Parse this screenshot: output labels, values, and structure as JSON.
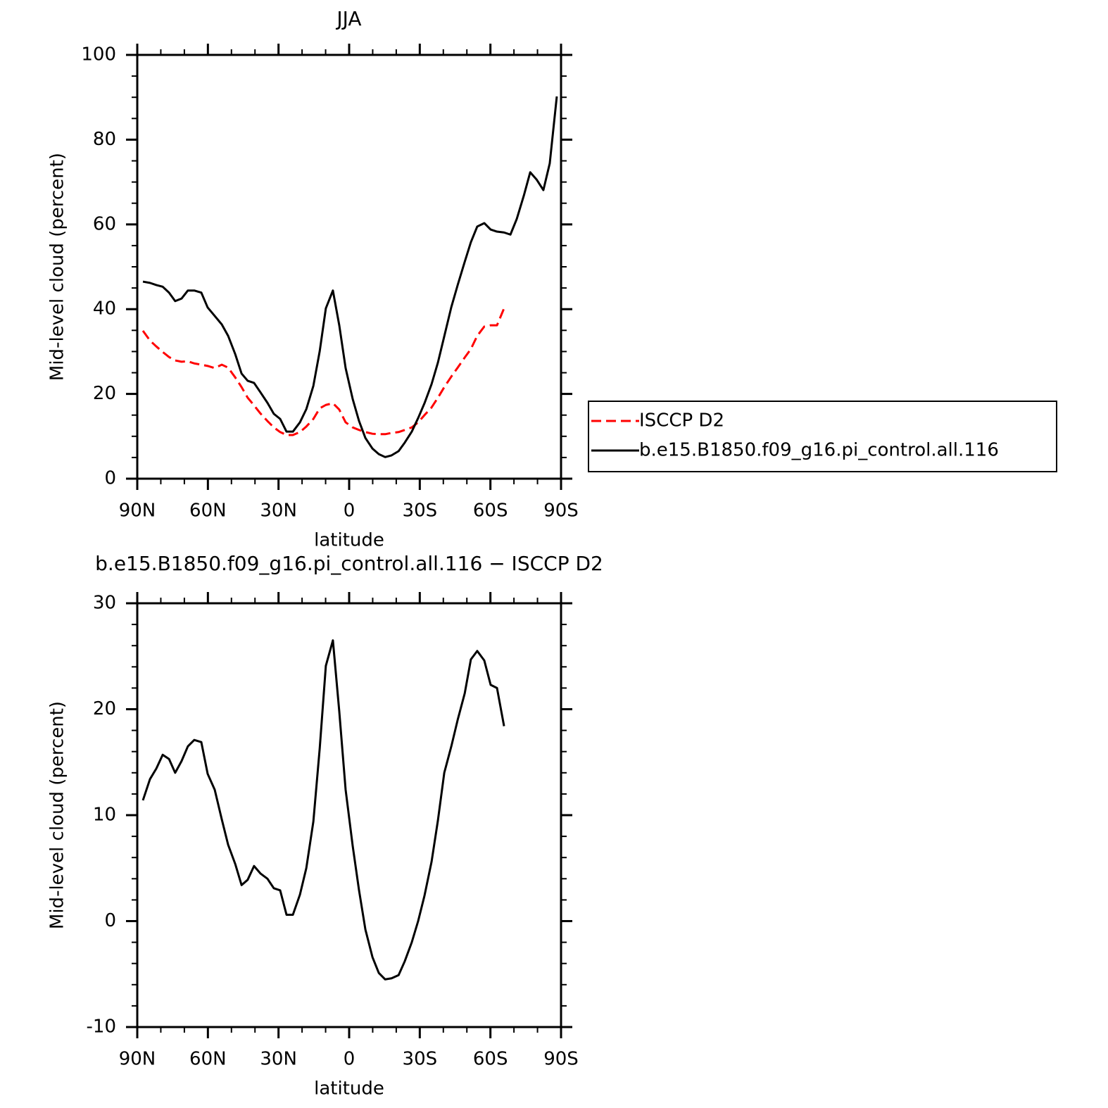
{
  "chart_data": [
    {
      "type": "line",
      "title": "JJA",
      "x_label": "latitude",
      "y_label": "Mid-level cloud (percent)",
      "x": [
        87.6,
        84.6,
        81.9,
        79.2,
        76.5,
        73.9,
        71.2,
        68.5,
        65.8,
        62.8,
        60.1,
        57.1,
        54.1,
        51.4,
        48.4,
        45.7,
        43.1,
        40.4,
        37.7,
        34.7,
        32.0,
        29.3,
        26.6,
        23.9,
        20.9,
        18.2,
        15.2,
        12.5,
        9.9,
        6.9,
        4.2,
        1.5,
        -1.5,
        -4.2,
        -6.9,
        -9.9,
        -12.6,
        -15.3,
        -18.0,
        -21.0,
        -23.6,
        -26.6,
        -29.3,
        -32.0,
        -35.0,
        -37.7,
        -40.4,
        -43.4,
        -46.1,
        -49.1,
        -51.7,
        -54.4,
        -57.4,
        -60.1,
        -62.8,
        -65.8,
        -68.5,
        -71.2,
        -74.2,
        -76.9,
        -79.6,
        -82.5,
        -85.2,
        -88.2
      ],
      "series": [
        {
          "name": "ISCCP D2",
          "color": "#ff0000",
          "linestyle": "dashed",
          "values": [
            34.9,
            32.6,
            31.2,
            29.9,
            28.7,
            27.9,
            27.6,
            27.7,
            27.2,
            26.9,
            26.6,
            26.1,
            26.9,
            26.2,
            23.9,
            21.6,
            19.1,
            17.3,
            15.4,
            13.6,
            12.1,
            11.0,
            10.3,
            10.3,
            11.0,
            12.3,
            14.1,
            16.6,
            17.4,
            17.8,
            16.3,
            13.3,
            12.1,
            11.5,
            11.0,
            10.6,
            10.5,
            10.5,
            10.8,
            11.0,
            11.5,
            12.1,
            13.3,
            15.0,
            16.8,
            19.1,
            21.6,
            24.1,
            26.2,
            28.6,
            30.6,
            33.7,
            35.9,
            36.2,
            36.2,
            40.2,
            null,
            null,
            null,
            null,
            null,
            null,
            null,
            null
          ]
        },
        {
          "name": "b.e15.B1850.f09_g16.pi_control.all.116",
          "color": "#000000",
          "linestyle": "solid",
          "values": [
            46.5,
            46.2,
            45.7,
            45.3,
            43.9,
            41.9,
            42.5,
            44.4,
            44.4,
            43.9,
            40.4,
            38.4,
            36.4,
            33.7,
            29.4,
            24.8,
            23.1,
            22.6,
            20.4,
            17.9,
            15.3,
            14.1,
            11.1,
            11.1,
            13.3,
            16.4,
            21.9,
            30.1,
            40.2,
            44.4,
            36.2,
            26.1,
            18.8,
            13.6,
            9.6,
            7.1,
            5.8,
            5.1,
            5.5,
            6.5,
            8.5,
            11.1,
            14.3,
            17.8,
            22.3,
            27.4,
            33.6,
            40.5,
            45.7,
            51.2,
            55.8,
            59.5,
            60.3,
            58.8,
            58.3,
            58.1,
            57.6,
            61.3,
            66.8,
            72.3,
            70.6,
            68.1,
            74.4,
            90.2
          ]
        }
      ],
      "xlim": [
        90,
        -90
      ],
      "xticks": [
        {
          "value": 90,
          "label": "90N"
        },
        {
          "value": 60,
          "label": "60N"
        },
        {
          "value": 30,
          "label": "30N"
        },
        0,
        {
          "value": -30,
          "label": "30S"
        },
        {
          "value": -60,
          "label": "60S"
        },
        {
          "value": -90,
          "label": "90S"
        }
      ],
      "ylim": [
        0,
        100
      ],
      "yticks": [
        0,
        20,
        40,
        60,
        80,
        100
      ],
      "legend": "outside right"
    },
    {
      "type": "line",
      "title": "b.e15.B1850.f09_g16.pi_control.all.116 − ISCCP D2",
      "x_label": "latitude",
      "y_label": "Mid-level cloud (percent)",
      "x": [
        87.6,
        84.6,
        81.9,
        79.2,
        76.5,
        73.9,
        71.2,
        68.5,
        65.8,
        62.8,
        60.1,
        57.1,
        54.1,
        51.4,
        48.4,
        45.7,
        43.1,
        40.4,
        37.7,
        34.7,
        32.0,
        29.3,
        26.6,
        23.9,
        20.9,
        18.2,
        15.2,
        12.5,
        9.9,
        6.9,
        4.2,
        1.5,
        -1.5,
        -4.2,
        -6.9,
        -9.9,
        -12.6,
        -15.3,
        -18.0,
        -21.0,
        -23.6,
        -26.6,
        -29.3,
        -32.0,
        -35.0,
        -37.7,
        -40.4,
        -43.4,
        -46.1,
        -49.1,
        -51.7,
        -54.4,
        -57.4,
        -60.1,
        -62.8,
        -65.8
      ],
      "series": [
        {
          "color": "#000000",
          "linestyle": "solid",
          "values": [
            11.4,
            13.4,
            14.4,
            15.7,
            15.3,
            14.0,
            15.1,
            16.5,
            17.1,
            16.9,
            13.9,
            12.4,
            9.6,
            7.2,
            5.4,
            3.4,
            3.9,
            5.2,
            4.5,
            4.0,
            3.1,
            2.9,
            0.6,
            0.6,
            2.5,
            5.0,
            9.4,
            16.3,
            24.1,
            26.5,
            19.8,
            12.4,
            7.1,
            2.9,
            -0.8,
            -3.4,
            -4.9,
            -5.5,
            -5.4,
            -5.1,
            -3.8,
            -2.0,
            0.0,
            2.4,
            5.6,
            9.5,
            14.0,
            16.5,
            19.0,
            21.5,
            24.7,
            25.5,
            24.6,
            22.3,
            22.0,
            18.4
          ]
        }
      ],
      "xlim": [
        90,
        -90
      ],
      "xticks": [
        {
          "value": 90,
          "label": "90N"
        },
        {
          "value": 60,
          "label": "60N"
        },
        {
          "value": 30,
          "label": "30N"
        },
        0,
        {
          "value": -30,
          "label": "30S"
        },
        {
          "value": -60,
          "label": "60S"
        },
        {
          "value": -90,
          "label": "90S"
        }
      ],
      "ylim": [
        -10,
        30
      ],
      "yticks": [
        -10,
        0,
        10,
        20,
        30
      ]
    }
  ]
}
